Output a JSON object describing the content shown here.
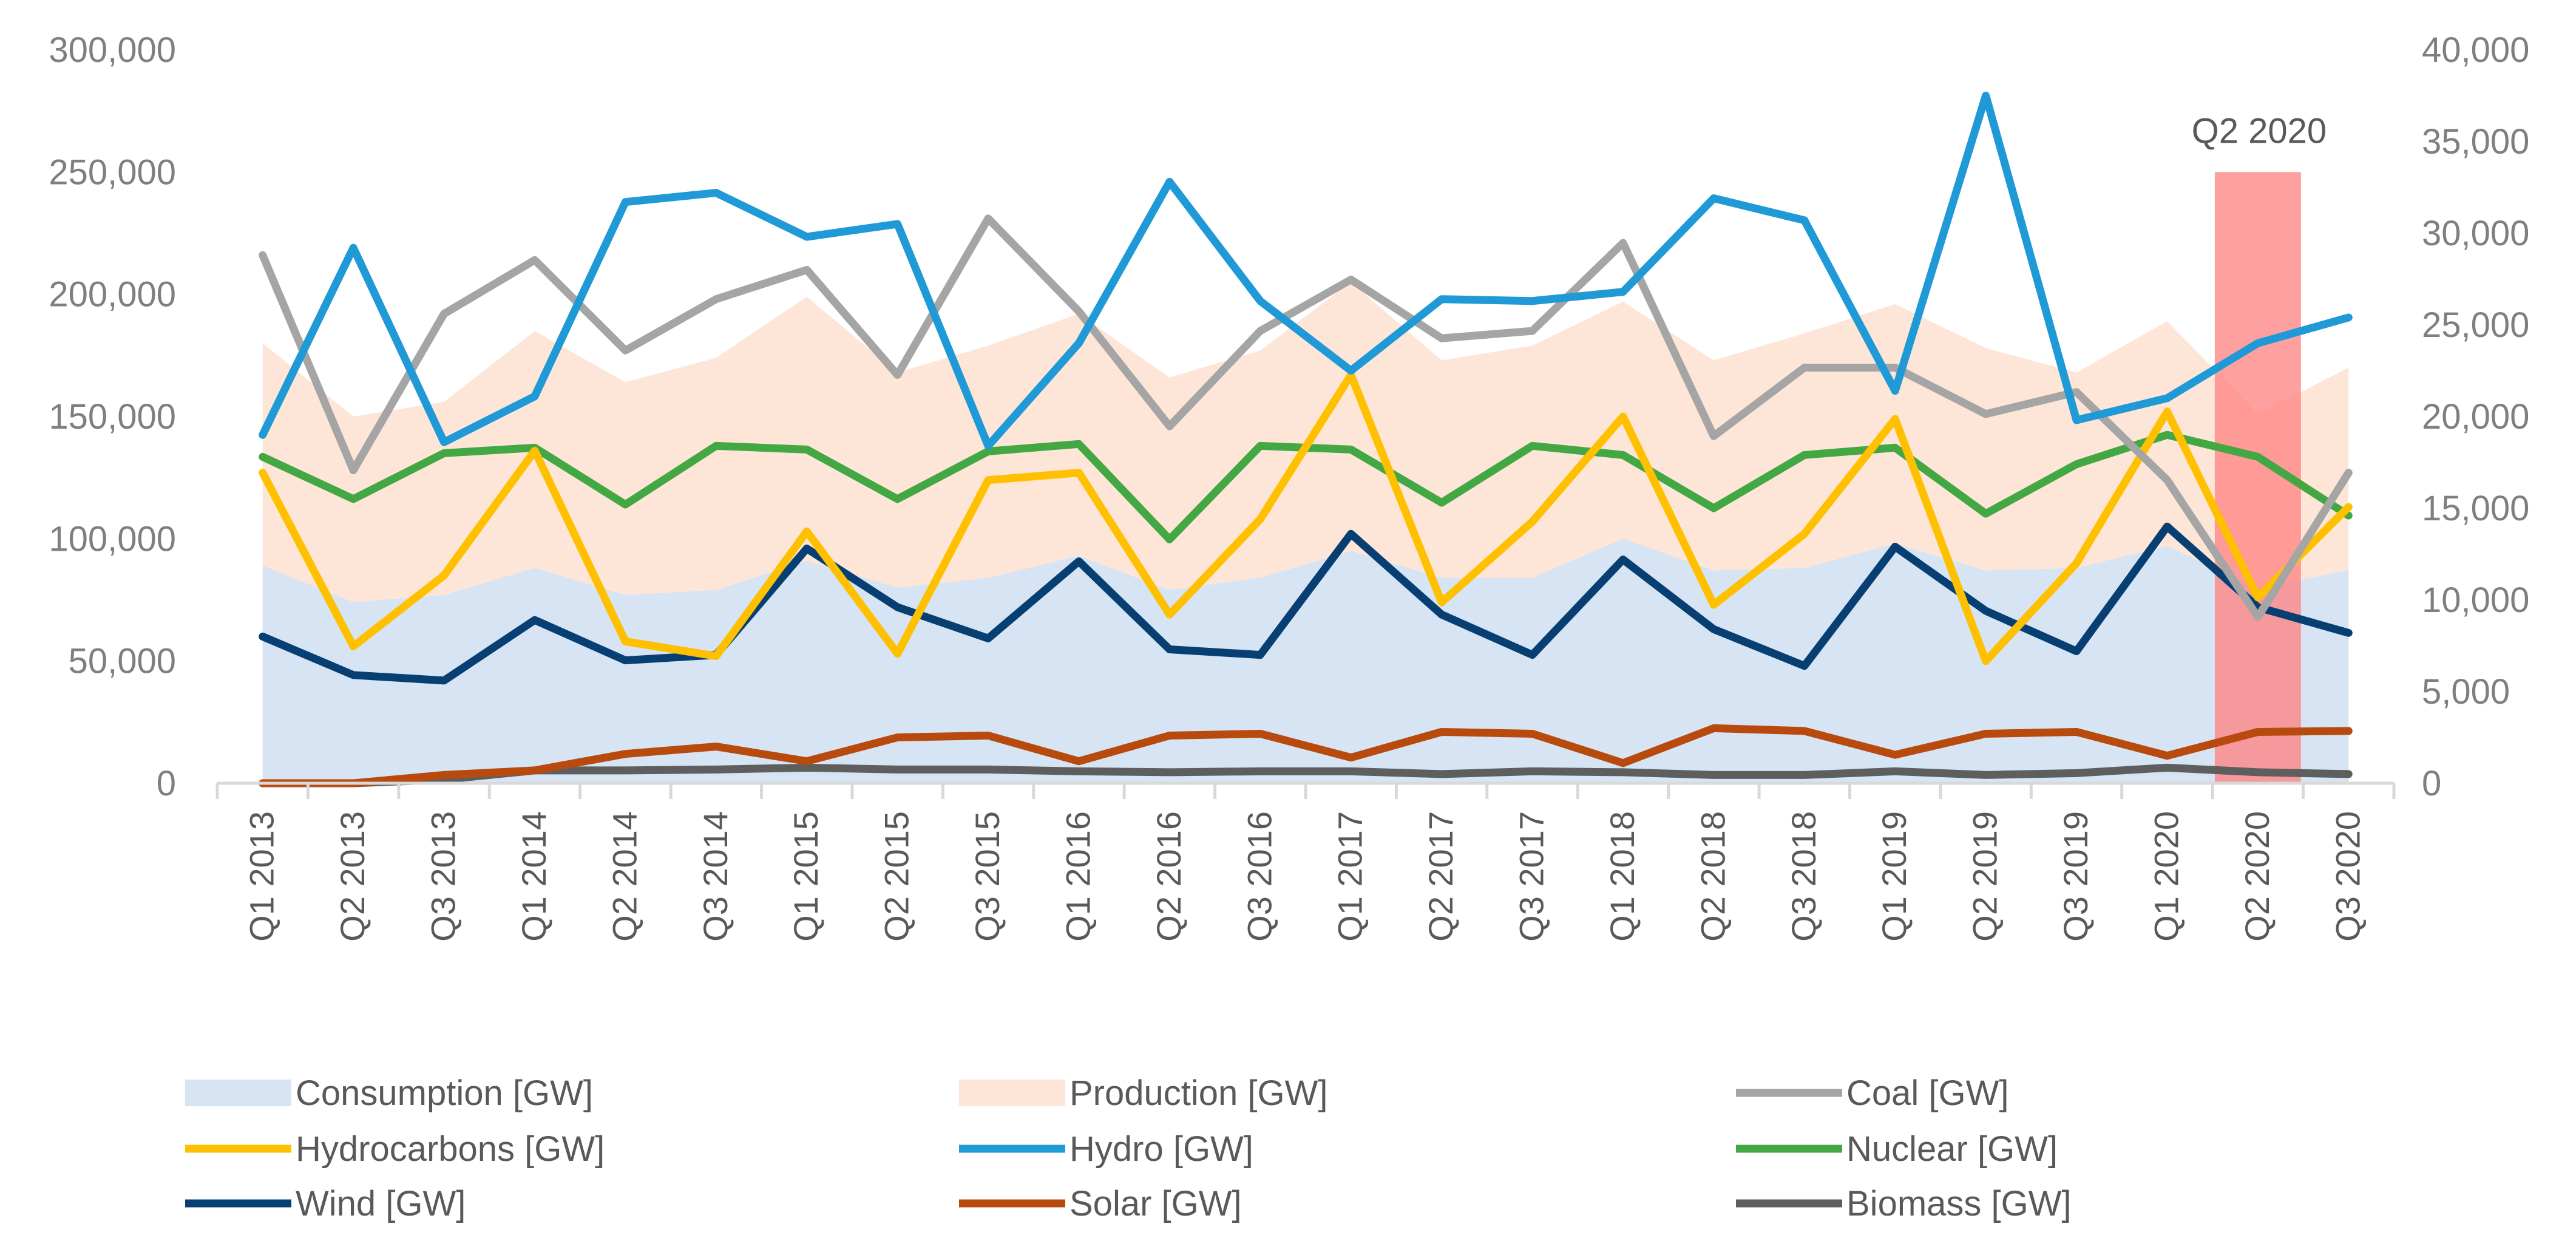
{
  "chart_data": {
    "type": "line",
    "title": "",
    "categories": [
      "Q1 2013",
      "Q2 2013",
      "Q3 2013",
      "Q1 2014",
      "Q2 2014",
      "Q3 2014",
      "Q1 2015",
      "Q2 2015",
      "Q3 2015",
      "Q1 2016",
      "Q2 2016",
      "Q3 2016",
      "Q1 2017",
      "Q2 2017",
      "Q3 2017",
      "Q1 2018",
      "Q2 2018",
      "Q3 2018",
      "Q1 2019",
      "Q2 2019",
      "Q3 2019",
      "Q1 2020",
      "Q2 2020",
      "Q3 2020"
    ],
    "y_axis": {
      "min": 0,
      "max": 300000,
      "ticks": [
        0,
        50000,
        100000,
        150000,
        200000,
        250000,
        300000
      ],
      "tick_labels": [
        "0",
        "50,000",
        "100,000",
        "150,000",
        "200,000",
        "250,000",
        "300,000"
      ]
    },
    "y2_axis": {
      "min": 0,
      "max": 40000,
      "ticks": [
        0,
        5000,
        10000,
        15000,
        20000,
        25000,
        30000,
        35000,
        40000
      ],
      "tick_labels": [
        "0",
        "5,000",
        "10,000",
        "15,000",
        "20,000",
        "25,000",
        "30,000",
        "35,000",
        "40,000"
      ]
    },
    "series": [
      {
        "name": "Consumption [GW]",
        "kind": "area",
        "axis": "y",
        "color": "#d6e4f4",
        "values": [
          89000,
          74000,
          77000,
          88000,
          77000,
          79000,
          91000,
          80000,
          84000,
          93000,
          79000,
          84000,
          95000,
          84000,
          84000,
          100000,
          87000,
          88000,
          98000,
          87000,
          88000,
          97000,
          80000,
          87000
        ]
      },
      {
        "name": "Production [GW]",
        "kind": "area",
        "axis": "y",
        "color": "#fde6d8",
        "values": [
          180000,
          150000,
          156000,
          185000,
          164000,
          174000,
          199000,
          168000,
          179000,
          192000,
          166000,
          177000,
          205000,
          173000,
          179000,
          197000,
          173000,
          184000,
          196000,
          178000,
          168000,
          189000,
          151000,
          170000
        ]
      },
      {
        "name": "Coal [GW]",
        "kind": "line",
        "axis": "y",
        "color": "#a5a5a5",
        "values": [
          216000,
          128000,
          192000,
          214000,
          177000,
          198000,
          210000,
          167000,
          231000,
          193000,
          146000,
          185000,
          206000,
          182000,
          185000,
          221000,
          142000,
          170000,
          170000,
          151000,
          160000,
          124000,
          68000,
          127000
        ]
      },
      {
        "name": "Hydrocarbons [GW]",
        "kind": "line",
        "axis": "y",
        "color": "#ffc000",
        "values": [
          127000,
          56000,
          85000,
          136000,
          58000,
          52000,
          103000,
          53000,
          124000,
          127000,
          69000,
          108000,
          167000,
          74000,
          107000,
          150000,
          73000,
          102000,
          149000,
          50000,
          90000,
          152000,
          76000,
          113000
        ]
      },
      {
        "name": "Hydro [GW]",
        "kind": "line",
        "axis": "y2",
        "color": "#1f9ad6",
        "values": [
          19000,
          29200,
          18600,
          21100,
          31700,
          32200,
          29800,
          30500,
          18400,
          24000,
          32800,
          26300,
          22500,
          26400,
          26300,
          26800,
          31900,
          30700,
          21400,
          37500,
          19800,
          21000,
          24000,
          25400
        ]
      },
      {
        "name": "Nuclear [GW]",
        "kind": "line",
        "axis": "y2",
        "color": "#43a844",
        "values": [
          17800,
          15500,
          18000,
          18300,
          15200,
          18400,
          18200,
          15500,
          18100,
          18500,
          13300,
          18400,
          18200,
          15300,
          18400,
          17900,
          15000,
          17900,
          18300,
          14700,
          17400,
          19000,
          17800,
          14600
        ]
      },
      {
        "name": "Wind [GW]",
        "kind": "line",
        "axis": "y2",
        "color": "#073f73",
        "values": [
          8000,
          5900,
          5600,
          8900,
          6700,
          7000,
          12800,
          9600,
          7900,
          12100,
          7300,
          7000,
          13600,
          9200,
          7000,
          12200,
          8400,
          6400,
          12900,
          9400,
          7200,
          14000,
          9600,
          8200
        ]
      },
      {
        "name": "Solar [GW]",
        "kind": "line",
        "axis": "y2",
        "color": "#b84a0e",
        "values": [
          0,
          0,
          450,
          700,
          1600,
          2000,
          1200,
          2500,
          2600,
          1200,
          2600,
          2700,
          1400,
          2800,
          2700,
          1100,
          3000,
          2850,
          1550,
          2700,
          2800,
          1500,
          2800,
          2850
        ]
      },
      {
        "name": "Biomass [GW]",
        "kind": "line",
        "axis": "y2",
        "color": "#5e5e5e",
        "values": [
          0,
          0,
          200,
          700,
          700,
          750,
          850,
          750,
          750,
          650,
          600,
          650,
          650,
          500,
          650,
          600,
          450,
          450,
          650,
          450,
          550,
          850,
          600,
          500
        ]
      }
    ],
    "highlight": {
      "label": "Q2 2020",
      "category": "Q2 2020",
      "top_value": 250000,
      "color": "#ff8080"
    },
    "legend": {
      "position": "bottom",
      "items": [
        "Consumption [GW]",
        "Production [GW]",
        "Coal [GW]",
        "Hydrocarbons [GW]",
        "Hydro [GW]",
        "Nuclear [GW]",
        "Wind [GW]",
        "Solar [GW]",
        "Biomass [GW]"
      ]
    },
    "grid": false
  }
}
